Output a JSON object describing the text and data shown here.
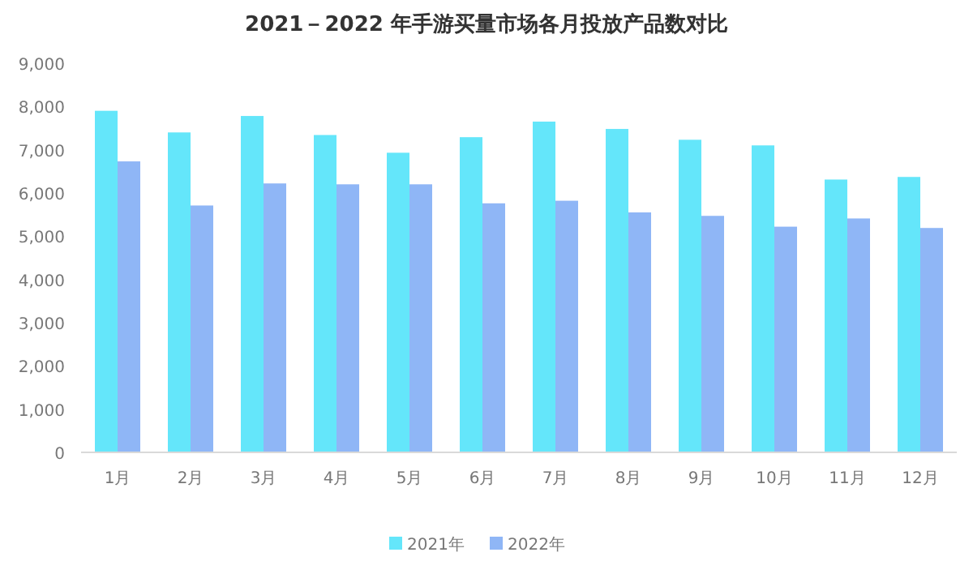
{
  "chart_data": {
    "type": "bar",
    "title": "2021－2022 年手游买量市场各月投放产品数对比",
    "categories": [
      "1月",
      "2月",
      "3月",
      "4月",
      "5月",
      "6月",
      "7月",
      "8月",
      "9月",
      "10月",
      "11月",
      "12月"
    ],
    "series": [
      {
        "name": "2021年",
        "color": "#64e6fa",
        "values": [
          7900,
          7400,
          7780,
          7340,
          6930,
          7290,
          7650,
          7480,
          7230,
          7100,
          6310,
          6370
        ]
      },
      {
        "name": "2022年",
        "color": "#8fb6f6",
        "values": [
          6730,
          5710,
          6220,
          6200,
          6200,
          5760,
          5820,
          5550,
          5470,
          5220,
          5410,
          5190
        ]
      }
    ],
    "ylim": [
      0,
      9000
    ],
    "yticks": [
      {
        "value": 0,
        "label": "0"
      },
      {
        "value": 1000,
        "label": "1,000"
      },
      {
        "value": 2000,
        "label": "2,000"
      },
      {
        "value": 3000,
        "label": "3,000"
      },
      {
        "value": 4000,
        "label": "4,000"
      },
      {
        "value": 5000,
        "label": "5,000"
      },
      {
        "value": 6000,
        "label": "6,000"
      },
      {
        "value": 7000,
        "label": "7,000"
      },
      {
        "value": 8000,
        "label": "8,000"
      },
      {
        "value": 9000,
        "label": "9,000"
      }
    ],
    "grid": false,
    "legend": "bottom"
  }
}
